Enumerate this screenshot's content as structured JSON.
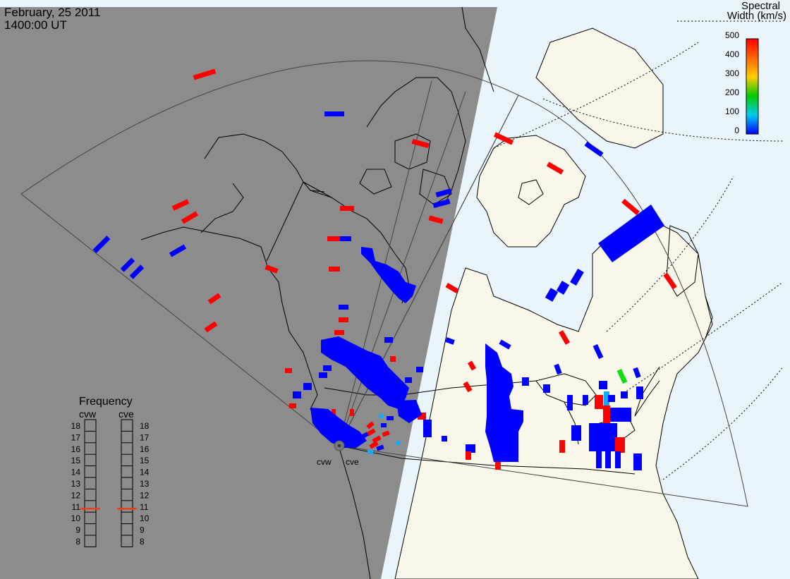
{
  "header": {
    "date": "February, 25 2011",
    "time": "1400:00 UT"
  },
  "colorbar": {
    "title_line1": "Spectral",
    "title_line2": "Width (km/s)",
    "ticks": [
      "500",
      "400",
      "300",
      "200",
      "100",
      "0"
    ],
    "colors": [
      "#ff0000",
      "#ff6600",
      "#ffcc00",
      "#00cc00",
      "#00ccee",
      "#0000ff"
    ]
  },
  "frequency": {
    "title": "Frequency",
    "radars": [
      "cvw",
      "cve"
    ],
    "levels": [
      "18",
      "17",
      "16",
      "15",
      "14",
      "13",
      "12",
      "11",
      "10",
      "9",
      "8"
    ],
    "selected_mhz": [
      10.8,
      10.8
    ],
    "marker_color": "#e8401a"
  },
  "radar_sites": [
    "cvw",
    "cve"
  ],
  "map_colors": {
    "night": "#8c8c8c",
    "day_land": "#f8f7ea",
    "day_ocean": "#eaf4fb",
    "blue": "#0000ff",
    "red": "#ff0000",
    "green": "#11dd11",
    "cyan": "#11aaff"
  }
}
